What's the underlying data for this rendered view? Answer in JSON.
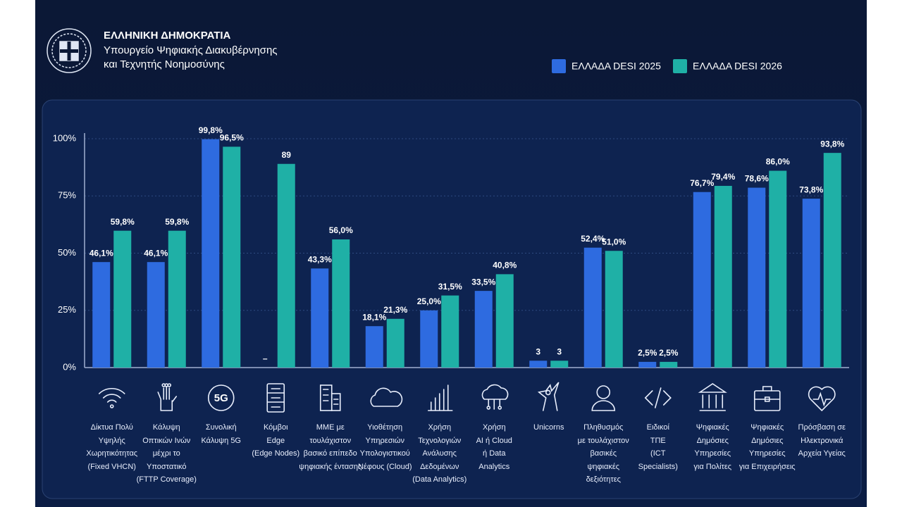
{
  "header": {
    "title": "ΕΛΛΗΝΙΚΗ ΔΗΜΟΚΡΑΤΙΑ",
    "subtitle_lines": [
      "Υπουργείο Ψηφιακής Διακυβέρνησης",
      "και Τεχνητής Νοημοσύνης"
    ]
  },
  "chart_data": {
    "type": "bar",
    "categories": [
      "Δίκτυα Πολύ\nΥψηλής\nΧωρητικότητας\n(Fixed VHCN)",
      "Κάλυψη\nΟπτικών Ινών\nμέχρι το\nΥποστατικό\n(FTTP Coverage)",
      "Συνολική\nΚάλυψη 5G",
      "Κόμβοι\nEdge\n(Edge Nodes)",
      "ΜΜΕ με\nτουλάχιστον\nβασικό επίπεδο\nψηφιακής έντασης",
      "Υιοθέτηση\nΥπηρεσιών\nΥπολογιστικού\nΝέφους (Cloud)",
      "Χρήση\nΤεχνολογιών\nΑνάλυσης\nΔεδομένων\n(Data Analytics)",
      "Χρήση\nAI ή Cloud\nή Data\nAnalytics",
      "Unicorns",
      "Πληθυσμός\nμε τουλάχιστον\nβασικές\nψηφιακές\nδεξιότητες",
      "Ειδικοί\nΤΠΕ\n(ICT\nSpecialists)",
      "Ψηφιακές\nΔημόσιες\nΥπηρεσίες\nγια Πολίτες",
      "Ψηφιακές\nΔημόσιες\nΥπηρεσίες\nγια Επιχειρήσεις",
      "Πρόσβαση σε\nΗλεκτρονικά\nΑρχεία Υγείας"
    ],
    "icon_text": "5G",
    "series": [
      {
        "name": "ΕΛΛΑΔΑ DESI 2025",
        "color": "#2e6be0",
        "values": [
          46.1,
          46.1,
          99.8,
          null,
          43.3,
          18.1,
          25.0,
          33.5,
          3,
          52.4,
          2.5,
          76.7,
          78.6,
          73.8
        ],
        "value_labels": [
          "46,1%",
          "46,1%",
          "99,8%",
          "–",
          "43,3%",
          "18,1%",
          "25,0%",
          "33,5%",
          "3",
          "52,4%",
          "2,5%",
          "76,7%",
          "78,6%",
          "73,8%"
        ]
      },
      {
        "name": "ΕΛΛΑΔΑ DESI 2026",
        "color": "#1fb0a6",
        "values": [
          59.8,
          59.8,
          96.5,
          89,
          56.0,
          21.3,
          31.5,
          40.8,
          3,
          51.0,
          2.5,
          79.4,
          86.0,
          93.8
        ],
        "value_labels": [
          "59,8%",
          "59,8%",
          "96,5%",
          "89",
          "56,0%",
          "21,3%",
          "31,5%",
          "40,8%",
          "3",
          "51,0%",
          "2,5%",
          "79,4%",
          "86,0%",
          "93,8%"
        ]
      }
    ],
    "ylim": [
      0,
      100
    ],
    "yticks": [
      {
        "value": 0,
        "label": "0%"
      },
      {
        "value": 25,
        "label": "25%"
      },
      {
        "value": 50,
        "label": "50%"
      },
      {
        "value": 75,
        "label": "75%"
      },
      {
        "value": 100,
        "label": "100%"
      }
    ],
    "grid": true
  }
}
